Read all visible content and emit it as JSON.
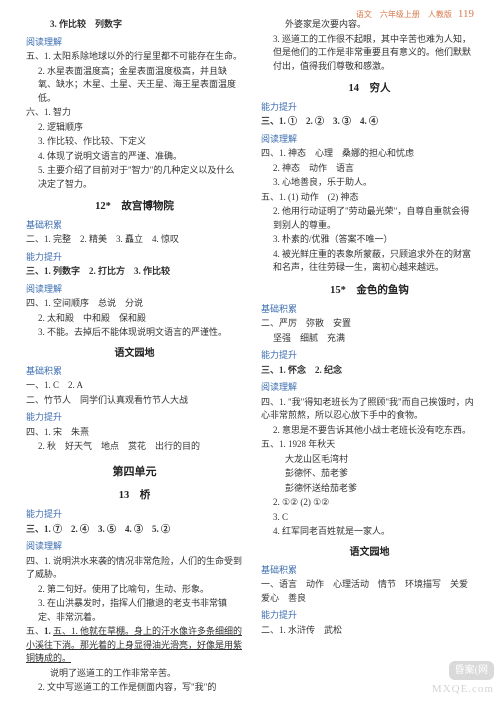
{
  "header": {
    "text": "语文　六年级上册　人教版",
    "page": "119"
  },
  "left": {
    "l1": "3. 作比较　列数字",
    "sec1": "阅读理解",
    "l2": "五、1. 太阳系除地球以外的行星里都不可能存在生命。",
    "l3": "2. 水星表面温度高；金星表面温度极高，并且缺氧、缺水；木星、土星、天王星、海王星表面温度低。",
    "l4": "六、1. 智力",
    "l5": "2. 逻辑顺序",
    "l6": "3. 作比较、作比较、下定义",
    "l7": "4. 体现了说明文语言的严谨、准确。",
    "l8": "5. 主要介绍了目前对于\"智力\"的几种定义以及什么决定了智力。",
    "title1": "12*　故宫博物院",
    "sec2": "基础积累",
    "l9": "二、1. 完整　2. 精美　3. 矗立　4. 惊叹",
    "sec3": "能力提升",
    "l10": "三、1. 列数字　2. 打比方　3. 作比较",
    "sec4": "阅读理解",
    "l11": "四、1. 空间顺序　总说　分说",
    "l12": "2. 太和殿　中和殿　保和殿",
    "l13": "3. 不能。去掉后不能体现说明文语言的严谨性。",
    "title2": "语文园地",
    "sec5": "基础积累",
    "l14": "一、1. C　2. A",
    "l15": "二、竹节人　同学们认真观看竹节人大战",
    "sec6": "能力提升",
    "l16": "四、1. 宋　朱熹",
    "l17": "2. 秋　好天气　地点　赏花　出行的目的",
    "unit": "第四单元",
    "title3": "13　桥",
    "sec7": "能力提升",
    "l18": "三、1. ⑦　2. ④　3. ⑤　4. ③　5. ②",
    "sec8": "阅读理解",
    "l19": "四、1. 说明洪水来袭的情况非常危险，人们的生命受到了威胁。",
    "l20": "2. 第二句好。使用了比喻句，生动、形象。",
    "l21": "3. 在山洪暴发时，指挥人们撤退的老支书非常镇定、非常沉着。",
    "l22": "五、1. 他就在草棚。身上的汗水像许多条细细的小溪往下淌。那光着的上身显得油光滑亮，好像是用紫铜铸成的。",
    "l23": "说明了巡道工的工作非常辛苦。",
    "l24": "2. 文中写巡道工的工作是侧面内容，写\"我\"的"
  },
  "right": {
    "r1": "外婆家是次要内容。",
    "r2": "3. 巡道工的工作很不起眼，其中辛苦也难为人知，但是他们的工作是非常重要且有意义的。他们默默付出，值得我们尊敬和感激。",
    "title4": "14　穷人",
    "sec9": "能力提升",
    "r3": "三、1. ①　2. ②　3. ③　4. ④",
    "sec10": "阅读理解",
    "r4": "四、1. 神态　心理　桑娜的担心和忧虑",
    "r5": "2. 神态　动作　语言",
    "r6": "3. 心地善良，乐于助人。",
    "r7": "五、1. (1) 动作　(2) 神态",
    "r8": "2. 他用行动证明了\"劳动最光荣\"，自尊自重就会得到别人的尊重。",
    "r9": "3. 朴素的/优雅（答案不唯一）",
    "r10": "4. 被光鲜庄重的表象所蒙蔽，只顾追求外在的财富和名声，往往劳碌一生，离初心越来越远。",
    "title5": "15*　金色的鱼钩",
    "sec11": "基础积累",
    "r11": "二、严厉　弥散　安置",
    "r12": "坚强　细腻　充满",
    "sec12": "能力提升",
    "r13": "三、1. 怀念　2. 纪念",
    "sec13": "阅读理解",
    "r14": "四、1. \"我\"得知老班长为了照顾\"我\"而自己挨饿时，内心非常煎熬，所以忍心放下手中的食物。",
    "r15": "2. 意思是不要告诉其他小战士老班长没有吃东西。",
    "r16": "五、1. 1928 年秋天",
    "r17": "大龙山区毛湾村",
    "r18": "彭德怀、茄老爹",
    "r19": "彭德怀送给茄老爹",
    "r20": "2. ①② (2) ①②",
    "r21": "3. C",
    "r22": "4. 红军同老百姓就是一家人。",
    "title6": "语文园地",
    "sec14": "基础积累",
    "r23": "一、语言　动作　心理活动　情节　环境描写　关爱　爱心　善良",
    "sec15": "能力提升",
    "r24": "二、1. 水浒传　武松"
  },
  "watermark": {
    "a": "昏案(网",
    "b": "MXQE.com"
  }
}
